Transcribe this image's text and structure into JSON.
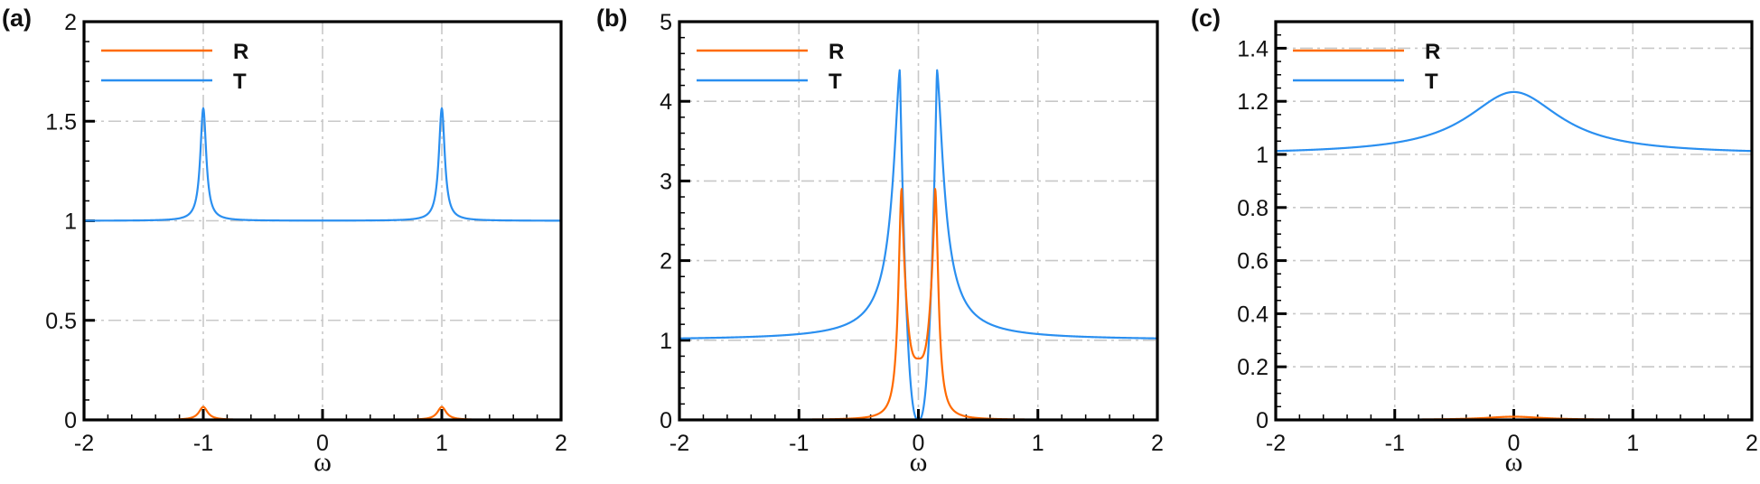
{
  "colors": {
    "R": "#ff6a00",
    "T": "#2a8ff0",
    "grid": "#c8c8c8",
    "frame": "#000000"
  },
  "legend": {
    "R": "R",
    "T": "T"
  },
  "xlabel": "ω",
  "chart_data": [
    {
      "type": "line",
      "panel": "(a)",
      "title": "",
      "xlabel": "ω",
      "ylabel": "",
      "xlim": [
        -2,
        2
      ],
      "ylim": [
        0,
        2
      ],
      "x_ticks": [
        "-2",
        "-1",
        "0",
        "1",
        "2"
      ],
      "y_ticks": [
        "0",
        "0.5",
        "1",
        "1.5",
        "2"
      ],
      "grid": true,
      "legend_position": "upper left",
      "series": [
        {
          "name": "R",
          "color": "#ff6a00",
          "description": "near zero with small peaks at ω=±1",
          "x": [
            -2,
            -1.2,
            -1.05,
            -1.0,
            -0.95,
            -0.8,
            0,
            0.8,
            0.95,
            1.0,
            1.05,
            1.2,
            2
          ],
          "values": [
            0,
            0,
            0.02,
            0.065,
            0.02,
            0,
            0,
            0,
            0.02,
            0.065,
            0.02,
            0,
            0
          ]
        },
        {
          "name": "T",
          "color": "#2a8ff0",
          "description": "baseline 1 with sharp peaks at ω=±1",
          "x": [
            -2,
            -1.5,
            -1.2,
            -1.1,
            -1.03,
            -1.0,
            -0.97,
            -0.9,
            -0.8,
            -0.5,
            0,
            0.5,
            0.8,
            0.9,
            0.97,
            1.0,
            1.03,
            1.1,
            1.2,
            1.5,
            2
          ],
          "values": [
            1.0,
            1.005,
            1.02,
            1.06,
            1.25,
            1.565,
            1.25,
            1.06,
            1.02,
            1.003,
            1.0,
            1.003,
            1.02,
            1.06,
            1.25,
            1.565,
            1.25,
            1.06,
            1.02,
            1.005,
            1.0
          ]
        }
      ]
    },
    {
      "type": "line",
      "panel": "(b)",
      "title": "",
      "xlabel": "ω",
      "ylabel": "",
      "xlim": [
        -2,
        2
      ],
      "ylim": [
        0,
        5
      ],
      "x_ticks": [
        "-2",
        "-1",
        "0",
        "1",
        "2"
      ],
      "y_ticks": [
        "0",
        "1",
        "2",
        "3",
        "4",
        "5"
      ],
      "grid": true,
      "legend_position": "upper left",
      "series": [
        {
          "name": "R",
          "color": "#ff6a00",
          "description": "two peaks ~2.9 at ω≈±0.14 with dip ~0.77 at ω=0",
          "x": [
            -2,
            -0.5,
            -0.3,
            -0.2,
            -0.14,
            -0.1,
            -0.05,
            0,
            0.05,
            0.1,
            0.14,
            0.2,
            0.3,
            0.5,
            2
          ],
          "values": [
            0,
            0.01,
            0.1,
            0.5,
            2.9,
            1.6,
            0.95,
            0.77,
            0.95,
            1.6,
            2.9,
            0.5,
            0.1,
            0.01,
            0
          ]
        },
        {
          "name": "T",
          "color": "#2a8ff0",
          "description": "baseline 1, peaks ~4.4 at ω≈±0.155, zero at ω=0",
          "x": [
            -2,
            -1,
            -0.6,
            -0.4,
            -0.25,
            -0.155,
            -0.1,
            -0.05,
            0,
            0.05,
            0.1,
            0.155,
            0.25,
            0.4,
            0.6,
            1,
            2
          ],
          "values": [
            1.0,
            1.05,
            1.15,
            1.4,
            2.2,
            4.4,
            2.0,
            0.3,
            0.0,
            0.3,
            2.0,
            4.4,
            2.2,
            1.4,
            1.15,
            1.05,
            1.0
          ]
        }
      ]
    },
    {
      "type": "line",
      "panel": "(c)",
      "title": "",
      "xlabel": "ω",
      "ylabel": "",
      "xlim": [
        -2,
        2
      ],
      "ylim": [
        0,
        1.5
      ],
      "x_ticks": [
        "-2",
        "-1",
        "0",
        "1",
        "2"
      ],
      "y_ticks": [
        "0",
        "0.2",
        "0.4",
        "0.6",
        "0.8",
        "1",
        "1.2",
        "1.4"
      ],
      "grid": true,
      "legend_position": "upper left",
      "series": [
        {
          "name": "R",
          "color": "#ff6a00",
          "description": "nearly zero, small hump ~0.012 at ω=0",
          "x": [
            -2,
            -0.6,
            -0.3,
            0,
            0.3,
            0.6,
            2
          ],
          "values": [
            0,
            0.002,
            0.007,
            0.012,
            0.007,
            0.002,
            0
          ]
        },
        {
          "name": "T",
          "color": "#2a8ff0",
          "description": "broad peak ~1.235 at ω=0, approaching 1 at edges",
          "x": [
            -2,
            -1.5,
            -1,
            -0.7,
            -0.5,
            -0.3,
            0,
            0.3,
            0.5,
            0.7,
            1,
            1.5,
            2
          ],
          "values": [
            1.01,
            1.02,
            1.04,
            1.07,
            1.11,
            1.17,
            1.235,
            1.17,
            1.11,
            1.07,
            1.04,
            1.02,
            1.01
          ]
        }
      ]
    }
  ]
}
